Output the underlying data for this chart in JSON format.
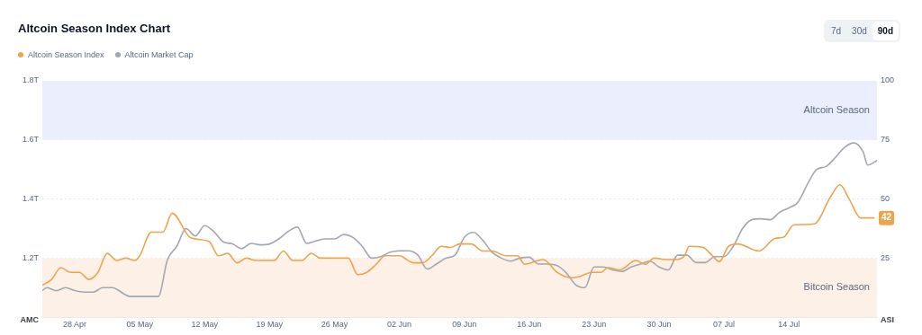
{
  "chart_data": {
    "type": "line",
    "title": "Altcoin Season Index Chart",
    "ylabel": "AMC",
    "y2label": "ASI",
    "annotations": [
      "7d",
      "30d",
      "90d"
    ],
    "xlim": [
      "--04-24T12:00",
      "--07-23T12:00"
    ],
    "xticks": [
      {
        "value": "--04-28",
        "label": "28 Apr"
      },
      {
        "value": "--05-05",
        "label": "05 May"
      },
      {
        "value": "--05-12",
        "label": "12 May"
      },
      {
        "value": "--05-19",
        "label": "19 May"
      },
      {
        "value": "--05-26",
        "label": "26 May"
      },
      {
        "value": "--06-02",
        "label": "02 Jun"
      },
      {
        "value": "--06-09",
        "label": "09 Jun"
      },
      {
        "value": "--06-16",
        "label": "16 Jun"
      },
      {
        "value": "--06-23",
        "label": "23 Jun"
      },
      {
        "value": "--06-30",
        "label": "30 Jun"
      },
      {
        "value": "--07-07",
        "label": "07 Jul"
      },
      {
        "value": "--07-14",
        "label": "14 Jul"
      }
    ],
    "ylim": [
      1.0,
      1.8
    ],
    "yticks": [
      {
        "value": 1.2,
        "label": "1.2T"
      },
      {
        "value": 1.4,
        "label": "1.4T"
      },
      {
        "value": 1.6,
        "label": "1.6T"
      },
      {
        "value": 1.8,
        "label": "1.8T"
      }
    ],
    "y2lim": [
      0,
      100
    ],
    "y2ticks": [
      25,
      50,
      75,
      100
    ],
    "grid": "y",
    "legend": "top left",
    "marker": "none",
    "line_style": "solid",
    "bands": [
      {
        "axis": "y2",
        "from": 75,
        "to": 100,
        "label": "Altcoin Season",
        "color": "#eaeefd"
      },
      {
        "axis": "y2",
        "from": 0,
        "to": 25,
        "label": "Bitcoin Season",
        "color": "#fdf1e7"
      }
    ],
    "series": [
      {
        "name": "Altcoin Season Index",
        "color": "#eea44c",
        "axis": "y2",
        "x": [
          "--04-24T12:00",
          "--04-25T12:00",
          "--04-26T12:00",
          "--04-27T12:00",
          "--04-28T12:00",
          "--04-29T12:00",
          "--04-30T12:00",
          "--05-01T12:00",
          "--05-02T12:00",
          "--05-03T12:00",
          "--05-04T12:00",
          "--05-05",
          "--05-06T06:00",
          "--05-07T12:00",
          "--05-08T12:00",
          "--05-10T12:00",
          "--05-12T12:00",
          "--05-13T12:00",
          "--05-14T12:00",
          "--05-15T12:00",
          "--05-16T12:00",
          "--05-17T12:00",
          "--05-19T12:00",
          "--05-20T12:00",
          "--05-21T12:00",
          "--05-22T12:00",
          "--05-23T12:00",
          "--05-24T12:00",
          "--05-27T12:00",
          "--05-28T12:00",
          "--05-29T12:00",
          "--05-30T12:00",
          "--05-31T12:00",
          "--06-02",
          "--06-03T12:00",
          "--06-04T12:00",
          "--06-05T12:00",
          "--06-06T12:00",
          "--06-07T12:00",
          "--06-08T12:00",
          "--06-09T18:00",
          "--06-11",
          "--06-12",
          "--06-13T12:00",
          "--06-14T18:00",
          "--06-15T12:00",
          "--06-17T12:00",
          "--06-19",
          "--06-20T12:00",
          "--06-21T12:00",
          "--06-22T18:00",
          "--06-23T18:00",
          "--06-24T12:00",
          "--06-25T18:00",
          "--06-27T12:00",
          "--06-28T12:00",
          "--06-29T12:00",
          "--06-30T18:00",
          "--07-01T18:00",
          "--07-02T18:00",
          "--07-03T06:00",
          "--07-04T18:00",
          "--07-05T18:00",
          "--07-06T12:00",
          "--07-07T12:00",
          "--07-08T12:00",
          "--07-10T18:00",
          "--07-12T12:00",
          "--07-13T12:00",
          "--07-14T12:00",
          "--07-16T18:00",
          "--07-18T12:00",
          "--07-19T12:00",
          "--07-20T12:00",
          "--07-21T18:00",
          "--07-23T06:00"
        ],
        "values": [
          13.5,
          16,
          21,
          19,
          19,
          16,
          19,
          27,
          24,
          25,
          24,
          26,
          36,
          36,
          44,
          33.6,
          32,
          26,
          27,
          23,
          25,
          24,
          24,
          28,
          24,
          24,
          27,
          25,
          25,
          18,
          19,
          22.4,
          26,
          26,
          23,
          23,
          26,
          30,
          29.5,
          31,
          31,
          28,
          28,
          26,
          26,
          22.4,
          24.4,
          19,
          16.7,
          17.3,
          19,
          19,
          21,
          20,
          24,
          22.4,
          25,
          24.4,
          24.4,
          26,
          30,
          29.5,
          26,
          23.5,
          30,
          31,
          28,
          33.3,
          34,
          39,
          39.5,
          51,
          56,
          50,
          42,
          42
        ],
        "value_labels": [
          null,
          null,
          null,
          null,
          null,
          null,
          null,
          null,
          null,
          null,
          null,
          null,
          null,
          null,
          null,
          null,
          null,
          null,
          null,
          null,
          null,
          null,
          null,
          null,
          null,
          null,
          null,
          null,
          null,
          null,
          null,
          null,
          null,
          null,
          null,
          null,
          null,
          null,
          null,
          null,
          null,
          null,
          null,
          null,
          null,
          null,
          null,
          null,
          null,
          null,
          null,
          null,
          null,
          null,
          null,
          null,
          null,
          null,
          null,
          null,
          null,
          null,
          null,
          null,
          null,
          null,
          null,
          null,
          null,
          null,
          null,
          null,
          null,
          null,
          null,
          "42"
        ]
      },
      {
        "name": "Altcoin Market Cap",
        "color": "#a3a7b2",
        "axis": "y",
        "x": [
          "--04-24T12:00",
          "--04-25",
          "--04-26",
          "--04-27",
          "--04-28",
          "--04-29",
          "--04-30",
          "--05-01",
          "--05-02",
          "--05-04",
          "--05-07",
          "--05-08",
          "--05-09",
          "--05-10",
          "--05-11",
          "--05-12",
          "--05-13",
          "--05-14",
          "--05-15",
          "--05-16",
          "--05-17",
          "--05-18",
          "--05-19",
          "--05-20",
          "--05-21",
          "--05-22",
          "--05-23",
          "--05-24",
          "--05-25",
          "--05-26",
          "--05-27",
          "--05-28",
          "--05-29",
          "--05-30",
          "--05-31",
          "--06-01",
          "--06-02",
          "--06-03",
          "--06-04",
          "--06-05",
          "--06-06",
          "--06-07",
          "--06-08",
          "--06-09",
          "--06-10",
          "--06-11",
          "--06-12",
          "--06-13",
          "--06-14",
          "--06-15",
          "--06-16",
          "--06-17",
          "--06-18",
          "--06-19",
          "--06-20",
          "--06-21",
          "--06-22",
          "--06-23",
          "--06-24",
          "--06-25",
          "--06-26",
          "--06-27",
          "--06-28",
          "--06-29",
          "--06-30",
          "--07-01",
          "--07-02",
          "--07-03",
          "--07-04",
          "--07-05",
          "--07-06",
          "--07-07",
          "--07-08",
          "--07-09",
          "--07-10",
          "--07-11",
          "--07-12",
          "--07-13",
          "--07-14",
          "--07-15",
          "--07-16",
          "--07-17",
          "--07-18",
          "--07-19",
          "--07-20",
          "--07-21",
          "--07-22",
          "--07-22T12:00",
          "--07-23T12:00"
        ],
        "values": [
          1.09,
          1.1,
          1.09,
          1.1,
          1.09,
          1.085,
          1.085,
          1.1,
          1.1,
          1.07,
          1.07,
          1.195,
          1.24,
          1.3,
          1.275,
          1.31,
          1.29,
          1.255,
          1.248,
          1.232,
          1.25,
          1.245,
          1.248,
          1.265,
          1.29,
          1.305,
          1.25,
          1.258,
          1.265,
          1.265,
          1.28,
          1.27,
          1.24,
          1.2,
          1.205,
          1.22,
          1.225,
          1.225,
          1.21,
          1.163,
          1.18,
          1.2,
          1.21,
          1.27,
          1.287,
          1.26,
          1.22,
          1.2,
          1.19,
          1.2,
          1.203,
          1.18,
          1.18,
          1.175,
          1.15,
          1.11,
          1.1,
          1.17,
          1.17,
          1.16,
          1.155,
          1.17,
          1.18,
          1.19,
          1.17,
          1.16,
          1.21,
          1.21,
          1.185,
          1.185,
          1.205,
          1.205,
          1.24,
          1.3,
          1.33,
          1.333,
          1.33,
          1.355,
          1.37,
          1.39,
          1.45,
          1.5,
          1.51,
          1.54,
          1.575,
          1.59,
          1.56,
          1.515,
          1.53
        ]
      }
    ]
  }
}
